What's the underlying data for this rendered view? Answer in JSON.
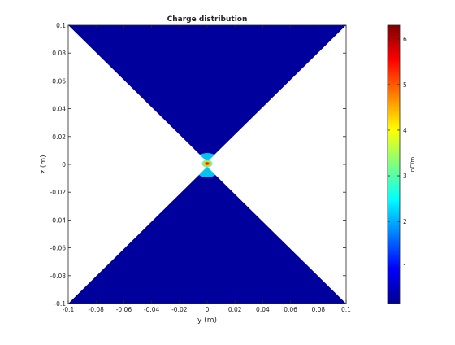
{
  "chart_data": {
    "type": "heatmap",
    "title": "Charge distribution",
    "xlabel": "y (m)",
    "ylabel": "z (m)",
    "xlim": [
      -0.1,
      0.1
    ],
    "ylim": [
      -0.1,
      0.1
    ],
    "x_ticks": [
      "-0.1",
      "-0.08",
      "-0.06",
      "-0.04",
      "-0.02",
      "0",
      "0.02",
      "0.04",
      "0.06",
      "0.08",
      "0.1"
    ],
    "y_ticks": [
      "-0.1",
      "-0.08",
      "-0.06",
      "-0.04",
      "-0.02",
      "0",
      "0.02",
      "0.04",
      "0.06",
      "0.08",
      "0.1"
    ],
    "colorbar": {
      "label": "nC/m",
      "range": [
        0.2,
        6.3
      ],
      "ticks": [
        "1",
        "2",
        "3",
        "4",
        "5",
        "6"
      ],
      "colormap": "jet"
    },
    "field_max": 6.3,
    "field_min": 0.2,
    "peak_location": [
      0,
      0.001
    ],
    "region": "double cone |z| >= |y|",
    "grid": false
  }
}
